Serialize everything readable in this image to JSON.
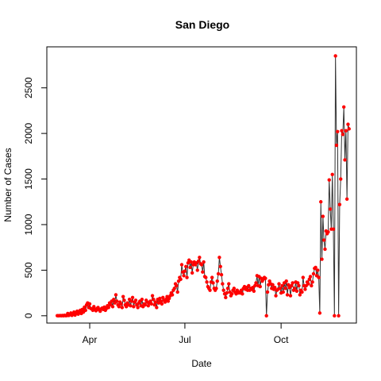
{
  "chart_data": {
    "type": "line",
    "title": "San Diego",
    "xlabel": "Date",
    "ylabel": "Number of Cases",
    "x_start": "2020-03-01",
    "x_end": "2020-12-07",
    "xlim": [
      "2020-02-20",
      "2020-12-12"
    ],
    "ylim": [
      -80,
      2950
    ],
    "x_ticks": [
      {
        "date": "2020-04-01",
        "label": "Apr"
      },
      {
        "date": "2020-07-01",
        "label": "Jul"
      },
      {
        "date": "2020-10-01",
        "label": "Oct"
      }
    ],
    "y_ticks": [
      0,
      500,
      1000,
      1500,
      2000,
      2500
    ],
    "grid": false,
    "line_color": "#333333",
    "point_color": "#ff0000",
    "series": [
      {
        "values": [
          1,
          0,
          1,
          2,
          0,
          3,
          0,
          5,
          1,
          2,
          25,
          3,
          15,
          30,
          4,
          22,
          40,
          8,
          35,
          50,
          18,
          45,
          60,
          25,
          70,
          40,
          95,
          60,
          120,
          140,
          90,
          130,
          80,
          75,
          60,
          100,
          70,
          55,
          80,
          90,
          65,
          50,
          75,
          85,
          70,
          95,
          60,
          80,
          110,
          90,
          140,
          120,
          160,
          100,
          180,
          140,
          230,
          160,
          120,
          100,
          150,
          130,
          90,
          210,
          170,
          120,
          100,
          140,
          120,
          180,
          110,
          160,
          200,
          100,
          150,
          170,
          120,
          90,
          140,
          160,
          110,
          180,
          100,
          130,
          120,
          170,
          150,
          110,
          140,
          160,
          130,
          220,
          180,
          120,
          150,
          90,
          180,
          140,
          190,
          160,
          130,
          200,
          170,
          150,
          180,
          210,
          160,
          190,
          220,
          250,
          230,
          280,
          300,
          350,
          330,
          260,
          380,
          420,
          400,
          560,
          480,
          440,
          490,
          540,
          420,
          580,
          610,
          530,
          590,
          470,
          560,
          590,
          560,
          580,
          500,
          600,
          640,
          570,
          560,
          480,
          590,
          430,
          420,
          370,
          320,
          300,
          280,
          370,
          420,
          360,
          300,
          280,
          300,
          380,
          460,
          640,
          540,
          450,
          350,
          280,
          240,
          200,
          250,
          300,
          350,
          260,
          220,
          240,
          280,
          300,
          260,
          240,
          280,
          250,
          260,
          250,
          280,
          240,
          300,
          320,
          290,
          310,
          280,
          330,
          280,
          300,
          290,
          310,
          270,
          330,
          360,
          440,
          330,
          430,
          320,
          410,
          380,
          400,
          420,
          410,
          0,
          260,
          340,
          380,
          350,
          300,
          340,
          290,
          310,
          220,
          280,
          290,
          350,
          300,
          250,
          330,
          260,
          360,
          300,
          380,
          230,
          340,
          310,
          220,
          330,
          360,
          280,
          300,
          370,
          270,
          360,
          330,
          230,
          280,
          260,
          420,
          330,
          290,
          330,
          370,
          350,
          400,
          430,
          330,
          370,
          460,
          520,
          530,
          440,
          500,
          420,
          30,
          1250,
          620,
          1090,
          830,
          730,
          930,
          900,
          920,
          1490,
          1170,
          950,
          1550,
          950,
          0,
          2850,
          1870,
          2020,
          0,
          1220,
          1500,
          2030,
          1990,
          2290,
          1710,
          2030,
          1280,
          2100,
          2050
        ]
      }
    ]
  }
}
